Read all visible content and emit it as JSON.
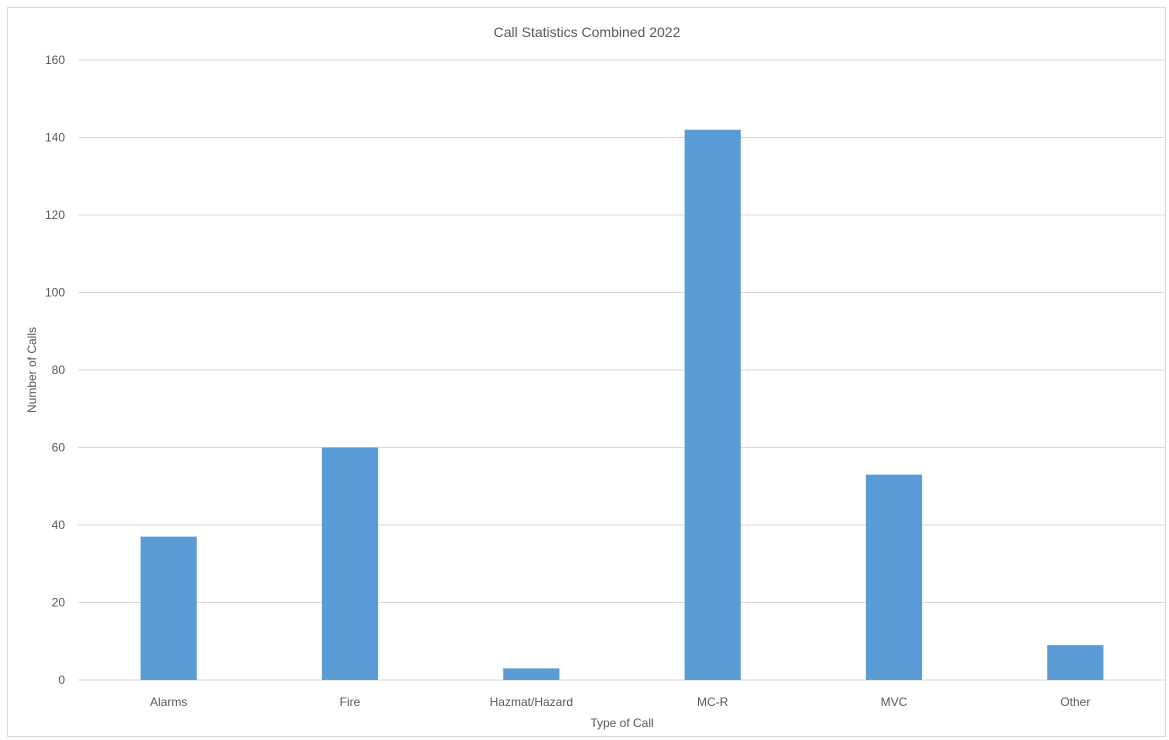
{
  "chart_data": {
    "type": "bar",
    "title": "Call Statistics Combined 2022",
    "xlabel": "Type of Call",
    "ylabel": "Number of Calls",
    "categories": [
      "Alarms",
      "Fire",
      "Hazmat/Hazard",
      "MC-R",
      "MVC",
      "Other"
    ],
    "values": [
      37,
      60,
      3,
      142,
      53,
      9
    ],
    "ylim": [
      0,
      160
    ],
    "yticks": [
      0,
      20,
      40,
      60,
      80,
      100,
      120,
      140,
      160
    ],
    "grid": true,
    "legend": "none",
    "bar_color": "#5b9bd5"
  }
}
